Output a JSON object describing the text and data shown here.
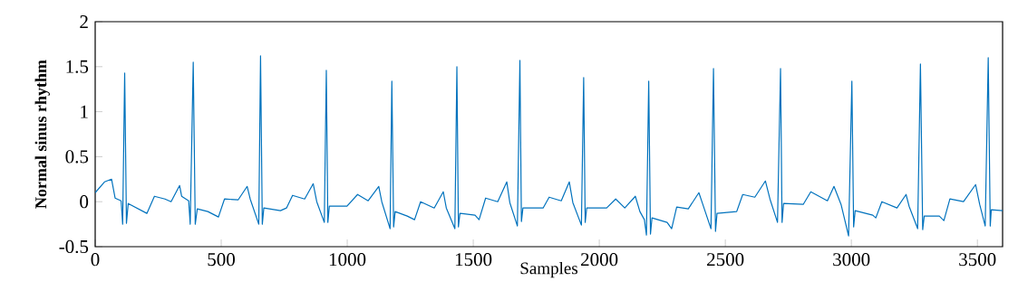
{
  "chart_data": {
    "type": "line",
    "xlabel": "Samples",
    "ylabel": "Normal sinus rhythm",
    "xlim": [
      0,
      3600
    ],
    "ylim": [
      -0.5,
      2
    ],
    "xticks": [
      0,
      500,
      1000,
      1500,
      2000,
      2500,
      3000,
      3500
    ],
    "yticks": [
      -0.5,
      0,
      0.5,
      1,
      1.5,
      2
    ],
    "marker": "none",
    "line_style": "solid",
    "series": [
      {
        "color": "#0072bd",
        "x": [
          0,
          37,
          65,
          79,
          103,
          109,
          117,
          124,
          131,
          205,
          235,
          277,
          301,
          335,
          343,
          371,
          377,
          389,
          397,
          405,
          447,
          489,
          513,
          567,
          603,
          615,
          649,
          656,
          663,
          669,
          735,
          759,
          783,
          831,
          865,
          879,
          909,
          917,
          923,
          929,
          999,
          1041,
          1083,
          1125,
          1137,
          1170,
          1177,
          1184,
          1190,
          1238,
          1267,
          1291,
          1345,
          1381,
          1393,
          1427,
          1435,
          1441,
          1447,
          1507,
          1523,
          1549,
          1597,
          1633,
          1645,
          1675,
          1685,
          1691,
          1697,
          1777,
          1801,
          1849,
          1881,
          1895,
          1929,
          1938,
          1944,
          1950,
          2029,
          2065,
          2101,
          2143,
          2161,
          2179,
          2187,
          2196,
          2203,
          2209,
          2269,
          2287,
          2307,
          2353,
          2395,
          2413,
          2443,
          2453,
          2461,
          2467,
          2545,
          2569,
          2617,
          2659,
          2677,
          2707,
          2719,
          2725,
          2731,
          2809,
          2839,
          2905,
          2931,
          2959,
          2989,
          3002,
          3009,
          3015,
          3085,
          3097,
          3121,
          3181,
          3217,
          3229,
          3263,
          3274,
          3283,
          3289,
          3349,
          3367,
          3391,
          3445,
          3493,
          3509,
          3531,
          3543,
          3551,
          3555,
          3600
        ],
        "values": [
          0.1,
          0.22,
          0.25,
          0.04,
          0.01,
          -0.25,
          1.43,
          -0.24,
          -0.02,
          -0.13,
          0.06,
          0.03,
          0,
          0.18,
          0.06,
          0.01,
          -0.25,
          1.55,
          -0.25,
          -0.08,
          -0.11,
          -0.17,
          0.03,
          0.02,
          0.17,
          0.03,
          -0.25,
          1.62,
          -0.25,
          -0.07,
          -0.1,
          -0.07,
          0.07,
          0.03,
          0.2,
          0,
          -0.23,
          1.46,
          -0.23,
          -0.05,
          -0.05,
          0.08,
          0.01,
          0.17,
          0,
          -0.3,
          1.34,
          -0.28,
          -0.11,
          -0.16,
          -0.2,
          0,
          -0.07,
          0.11,
          -0.07,
          -0.3,
          1.5,
          -0.28,
          -0.13,
          -0.15,
          -0.2,
          0.04,
          0,
          0.22,
          -0.01,
          -0.27,
          1.57,
          -0.22,
          -0.07,
          -0.07,
          0.05,
          0.01,
          0.22,
          -0.01,
          -0.26,
          1.38,
          -0.23,
          -0.07,
          -0.07,
          0.03,
          -0.07,
          0.06,
          -0.11,
          -0.2,
          -0.37,
          1.34,
          -0.36,
          -0.18,
          -0.23,
          -0.3,
          -0.06,
          -0.08,
          0.1,
          -0.05,
          -0.3,
          1.48,
          -0.33,
          -0.13,
          -0.11,
          0.08,
          0.05,
          0.23,
          0.03,
          -0.23,
          1.48,
          -0.23,
          -0.02,
          -0.03,
          0.11,
          0.01,
          0.17,
          -0.03,
          -0.38,
          1.34,
          -0.28,
          -0.1,
          -0.15,
          -0.18,
          0,
          -0.07,
          0.08,
          -0.05,
          -0.3,
          1.53,
          -0.31,
          -0.16,
          -0.16,
          -0.21,
          0.03,
          0,
          0.19,
          -0.03,
          -0.27,
          1.6,
          -0.27,
          -0.09,
          -0.1
        ]
      }
    ]
  }
}
